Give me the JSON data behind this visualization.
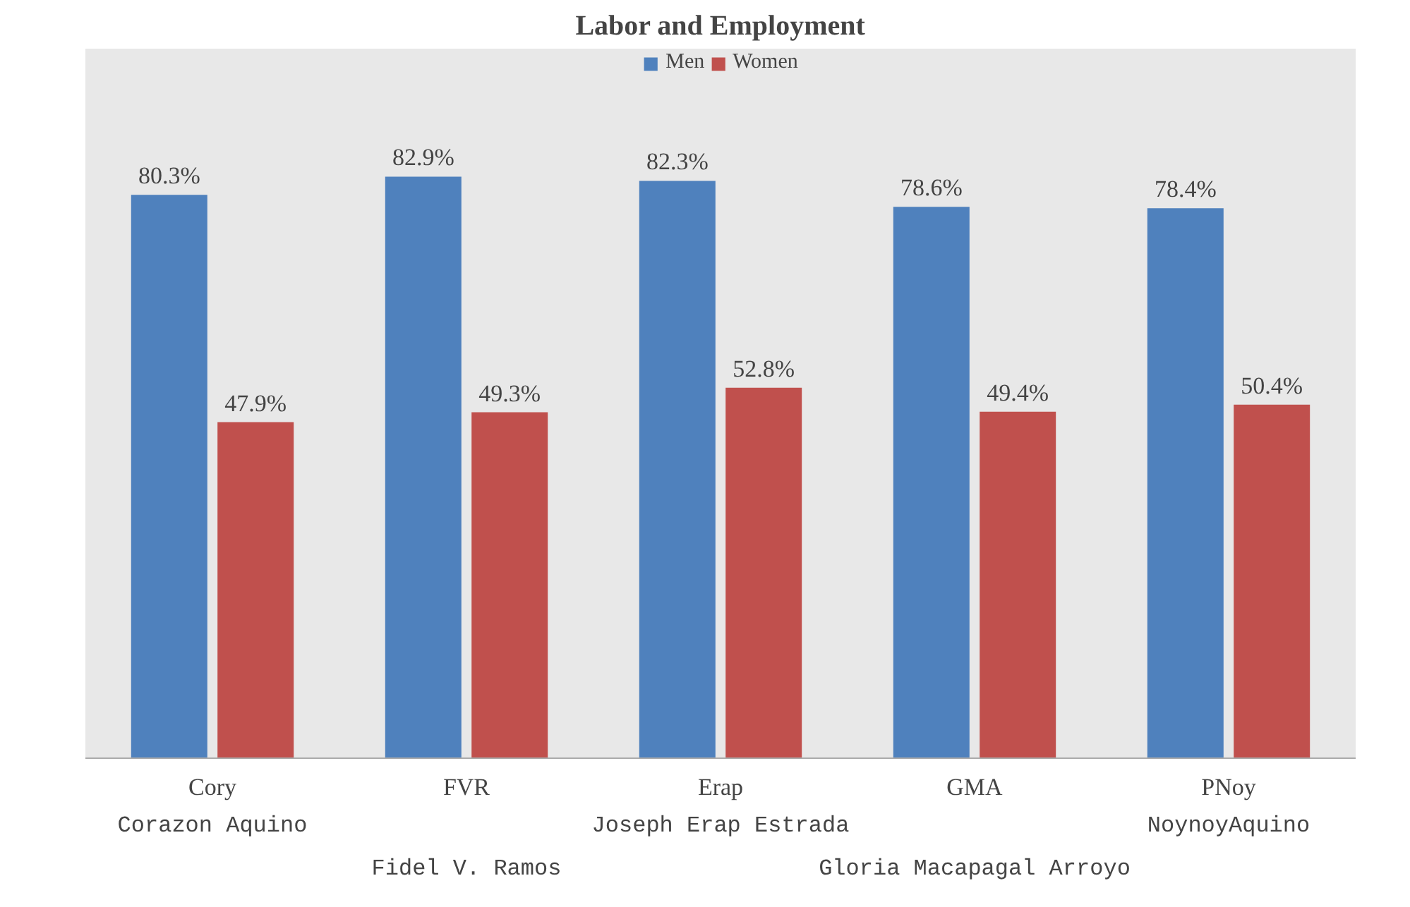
{
  "chart_data": {
    "type": "bar",
    "title": "Labor and Employment",
    "categories": [
      "Cory",
      "FVR",
      "Erap",
      "GMA",
      "PNoy"
    ],
    "series": [
      {
        "name": "Men",
        "color": "#4f81bd",
        "values": [
          80.3,
          82.9,
          82.3,
          78.6,
          78.4
        ],
        "value_labels": [
          "80.3%",
          "82.9%",
          "82.3%",
          "78.6%",
          "78.4%"
        ]
      },
      {
        "name": "Women",
        "color": "#c0504d",
        "values": [
          47.9,
          49.3,
          52.8,
          49.4,
          50.4
        ],
        "value_labels": [
          "47.9%",
          "49.3%",
          "52.8%",
          "49.4%",
          "50.4%"
        ]
      }
    ],
    "legend": "top",
    "tick_labels": "x",
    "annotations": [
      "Corazon Aquino",
      "Fidel V. Ramos",
      "Joseph Erap Estrada",
      "Gloria Macapagal Arroyo",
      "NoynoyAquino"
    ]
  }
}
